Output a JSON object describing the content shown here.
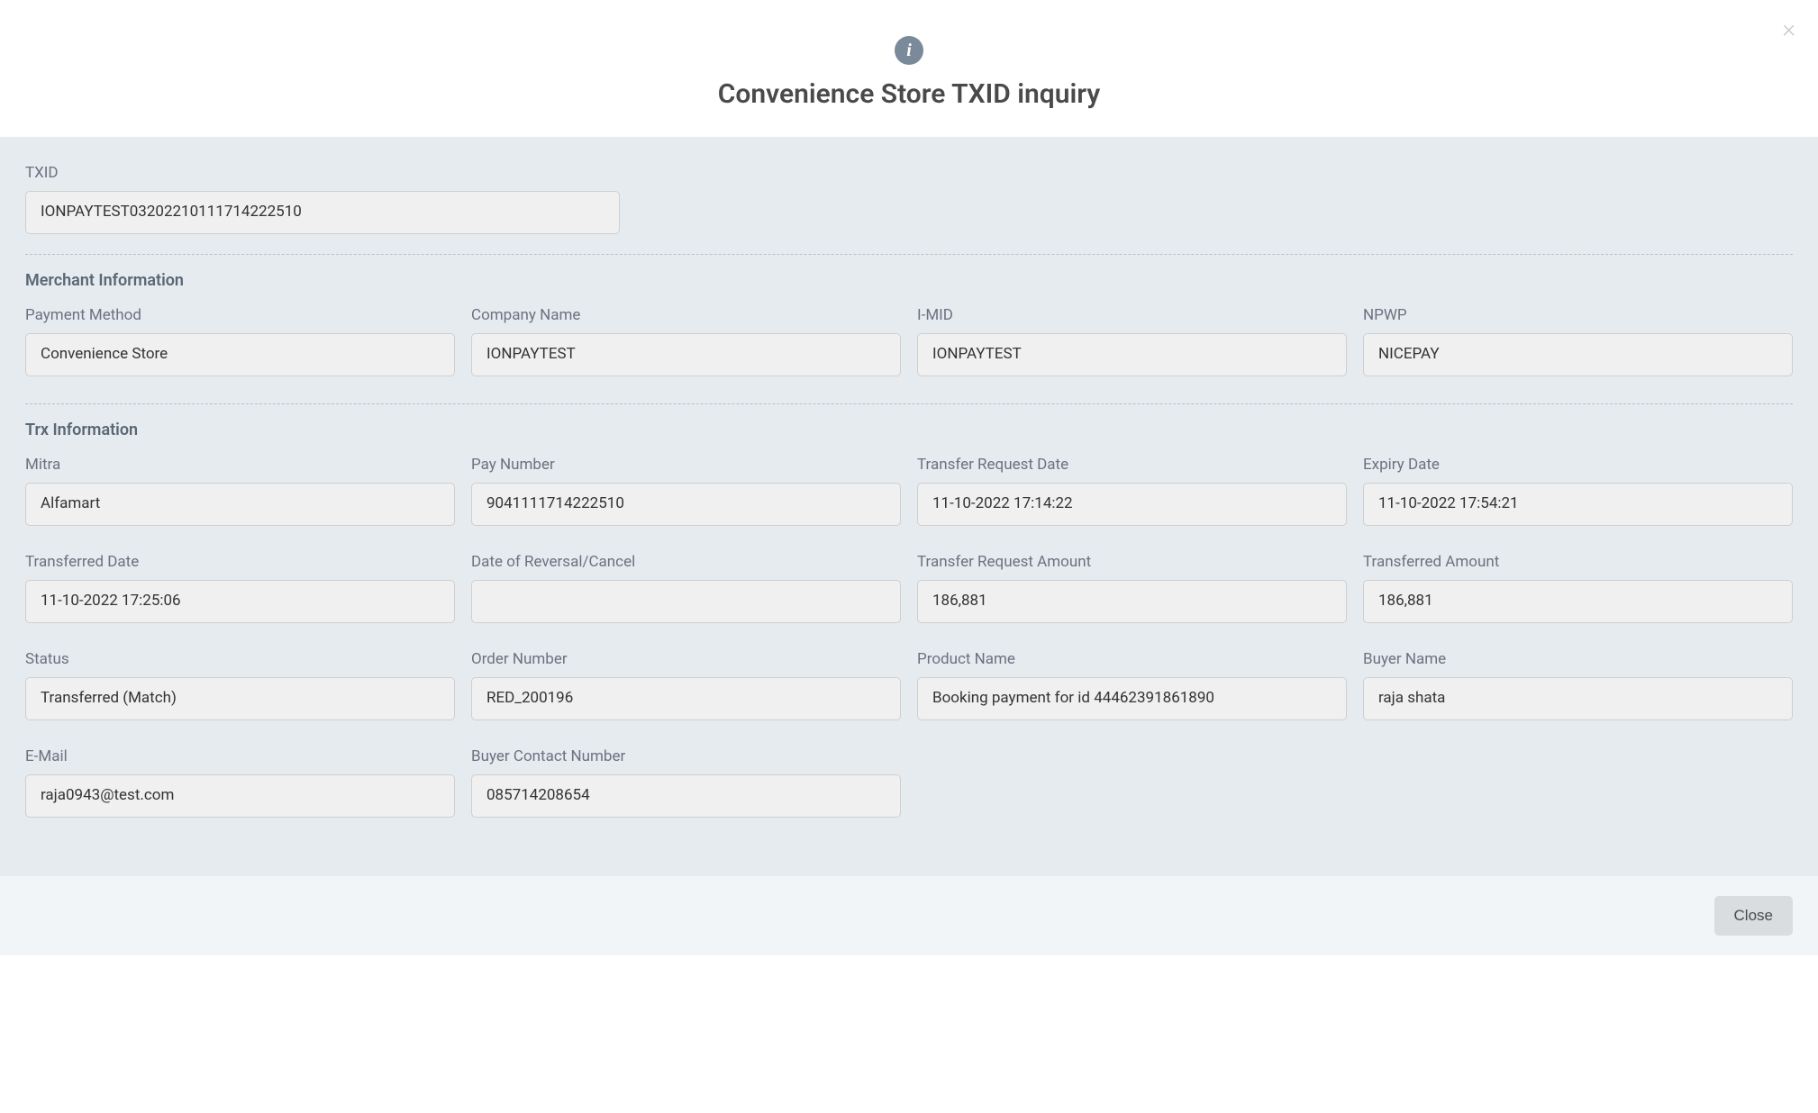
{
  "header": {
    "title": "Convenience Store TXID inquiry"
  },
  "txid": {
    "label": "TXID",
    "value": "IONPAYTEST03202210111714222510"
  },
  "merchant": {
    "section_title": "Merchant Information",
    "payment_method": {
      "label": "Payment Method",
      "value": "Convenience Store"
    },
    "company_name": {
      "label": "Company Name",
      "value": "IONPAYTEST"
    },
    "imid": {
      "label": "I-MID",
      "value": "IONPAYTEST"
    },
    "npwp": {
      "label": "NPWP",
      "value": "NICEPAY"
    }
  },
  "trx": {
    "section_title": "Trx Information",
    "mitra": {
      "label": "Mitra",
      "value": "Alfamart"
    },
    "pay_number": {
      "label": "Pay Number",
      "value": "9041111714222510"
    },
    "transfer_request_date": {
      "label": "Transfer Request Date",
      "value": "11-10-2022 17:14:22"
    },
    "expiry_date": {
      "label": "Expiry Date",
      "value": "11-10-2022 17:54:21"
    },
    "transferred_date": {
      "label": "Transferred Date",
      "value": "11-10-2022 17:25:06"
    },
    "date_reversal": {
      "label": "Date of Reversal/Cancel",
      "value": ""
    },
    "transfer_request_amount": {
      "label": "Transfer Request Amount",
      "value": "186,881"
    },
    "transferred_amount": {
      "label": "Transferred Amount",
      "value": "186,881"
    },
    "status": {
      "label": "Status",
      "value": "Transferred (Match)"
    },
    "order_number": {
      "label": "Order Number",
      "value": "RED_200196"
    },
    "product_name": {
      "label": "Product Name",
      "value": "Booking payment for id 44462391861890"
    },
    "buyer_name": {
      "label": "Buyer Name",
      "value": "raja shata"
    },
    "email": {
      "label": "E-Mail",
      "value": "raja0943@test.com"
    },
    "buyer_contact": {
      "label": "Buyer Contact Number",
      "value": "085714208654"
    }
  },
  "footer": {
    "close_label": "Close"
  },
  "colors": {
    "header_bg": "#ffffff",
    "body_bg": "#e6ebef",
    "footer_bg": "#f2f5f7",
    "input_bg": "#f0f0f0",
    "input_border": "#cfcfcf",
    "label_color": "#6b7280",
    "section_title_color": "#5a6775",
    "title_color": "#4a4a4a",
    "icon_bg": "#7b8a9a",
    "close_btn_bg": "#d9dde0"
  }
}
